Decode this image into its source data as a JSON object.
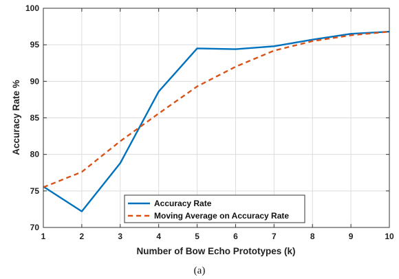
{
  "chart_data": {
    "type": "line",
    "x": [
      1,
      2,
      3,
      4,
      5,
      6,
      7,
      8,
      9,
      10
    ],
    "series": [
      {
        "name": "Accuracy Rate",
        "color": "#0072BD",
        "style": "solid",
        "values": [
          75.6,
          72.2,
          78.8,
          88.6,
          94.5,
          94.4,
          94.8,
          95.7,
          96.5,
          96.8
        ]
      },
      {
        "name": "Moving Average on Accuracy Rate",
        "color": "#D95319",
        "style": "dashed",
        "values": [
          75.5,
          77.6,
          81.8,
          85.6,
          89.3,
          92.0,
          94.2,
          95.5,
          96.3,
          96.8
        ]
      }
    ],
    "xlabel": "Number of Bow Echo Prototypes (k)",
    "ylabel": "Accuracy Rate %",
    "xlim": [
      1,
      10
    ],
    "ylim": [
      70,
      100
    ],
    "xticks": [
      1,
      2,
      3,
      4,
      5,
      6,
      7,
      8,
      9,
      10
    ],
    "yticks": [
      70,
      75,
      80,
      85,
      90,
      95,
      100
    ],
    "grid": true,
    "legend_position": "bottom-center"
  },
  "caption": "(a)"
}
